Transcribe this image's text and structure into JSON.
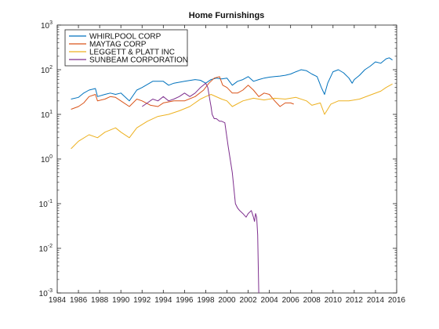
{
  "chart_data": {
    "type": "line",
    "title": "Home Furnishings",
    "xlabel": "",
    "ylabel": "",
    "x_scale": "linear",
    "y_scale": "log",
    "xlim": [
      1984,
      2016
    ],
    "ylim": [
      0.001,
      1000
    ],
    "x_ticks": [
      1984,
      1986,
      1988,
      1990,
      1992,
      1994,
      1996,
      1998,
      2000,
      2002,
      2004,
      2006,
      2008,
      2010,
      2012,
      2014,
      2016
    ],
    "y_ticks": [
      0.001,
      0.01,
      0.1,
      1,
      10,
      100,
      1000
    ],
    "y_tick_labels": [
      {
        "base": "10",
        "exp": "-3"
      },
      {
        "base": "10",
        "exp": "-2"
      },
      {
        "base": "10",
        "exp": "-1"
      },
      {
        "base": "10",
        "exp": "0"
      },
      {
        "base": "10",
        "exp": "1"
      },
      {
        "base": "10",
        "exp": "2"
      },
      {
        "base": "10",
        "exp": "3"
      }
    ],
    "grid": false,
    "legend_position": "top-left",
    "series": [
      {
        "name": "WHIRLPOOL CORP",
        "color": "#0072BD",
        "x": [
          1985.3,
          1986.0,
          1986.5,
          1987.0,
          1987.6,
          1987.8,
          1988.5,
          1989.0,
          1989.5,
          1990.0,
          1990.8,
          1991.5,
          1992.0,
          1993.0,
          1994.0,
          1994.5,
          1995.0,
          1996.0,
          1997.0,
          1997.5,
          1998.0,
          1998.5,
          1999.0,
          1999.5,
          2000.0,
          2000.5,
          2001.0,
          2001.5,
          2002.0,
          2002.5,
          2003.0,
          2003.5,
          2004.0,
          2004.5,
          2005.0,
          2005.5,
          2006.0,
          2006.5,
          2007.0,
          2007.5,
          2008.0,
          2008.5,
          2008.9,
          2009.2,
          2009.5,
          2010.0,
          2010.5,
          2011.0,
          2011.5,
          2011.8,
          2012.0,
          2012.5,
          2013.0,
          2013.5,
          2014.0,
          2014.5,
          2015.0,
          2015.3,
          2015.6
        ],
        "values": [
          22,
          24,
          30,
          35,
          38,
          25,
          28,
          30,
          28,
          30,
          20,
          35,
          40,
          55,
          55,
          45,
          50,
          55,
          60,
          58,
          50,
          60,
          65,
          62,
          65,
          45,
          55,
          60,
          70,
          55,
          60,
          65,
          68,
          70,
          72,
          75,
          80,
          90,
          100,
          95,
          80,
          70,
          40,
          28,
          50,
          90,
          100,
          85,
          65,
          50,
          60,
          75,
          100,
          120,
          150,
          140,
          175,
          185,
          165
        ]
      },
      {
        "name": "MAYTAG CORP",
        "color": "#D95319",
        "x": [
          1985.3,
          1986.0,
          1986.5,
          1987.0,
          1987.6,
          1987.8,
          1988.5,
          1989.0,
          1989.5,
          1990.0,
          1990.8,
          1991.5,
          1992.0,
          1992.8,
          1993.5,
          1994.0,
          1995.0,
          1996.0,
          1997.0,
          1997.8,
          1998.3,
          1998.8,
          1999.3,
          1999.6,
          2000.0,
          2000.5,
          2001.0,
          2001.5,
          2002.0,
          2002.5,
          2003.0,
          2003.5,
          2004.0,
          2004.5,
          2005.0,
          2005.5,
          2006.0,
          2006.3
        ],
        "values": [
          13,
          15,
          18,
          25,
          28,
          20,
          22,
          25,
          24,
          20,
          15,
          22,
          20,
          16,
          15,
          18,
          20,
          20,
          25,
          35,
          50,
          65,
          70,
          45,
          40,
          30,
          30,
          35,
          45,
          35,
          25,
          30,
          28,
          20,
          15,
          18,
          18,
          17
        ]
      },
      {
        "name": "LEGGETT & PLATT INC",
        "color": "#EDB120",
        "x": [
          1985.3,
          1986.0,
          1987.0,
          1987.8,
          1988.5,
          1989.5,
          1990.0,
          1990.8,
          1991.5,
          1992.5,
          1993.5,
          1994.5,
          1995.5,
          1996.5,
          1997.5,
          1998.0,
          1998.5,
          1999.5,
          2000.0,
          2000.5,
          2001.5,
          2002.5,
          2003.5,
          2004.5,
          2005.5,
          2006.5,
          2007.5,
          2008.0,
          2008.8,
          2009.2,
          2009.8,
          2010.5,
          2011.5,
          2012.5,
          2013.5,
          2014.5,
          2015.0,
          2015.6
        ],
        "values": [
          1.7,
          2.5,
          3.5,
          3.0,
          4.0,
          5.0,
          4.0,
          3.0,
          5.0,
          7.0,
          9.0,
          10.0,
          12.0,
          15.0,
          22.0,
          25.0,
          28.0,
          22.0,
          20.0,
          15.0,
          20.0,
          23.0,
          21.0,
          23.0,
          22.0,
          24.0,
          20.0,
          16.0,
          18.0,
          10.0,
          17.0,
          20.0,
          20.0,
          22.0,
          27.0,
          33.0,
          40.0,
          48.0
        ]
      },
      {
        "name": "SUNBEAM CORPORATION",
        "color": "#7E2F8E",
        "x": [
          1992.0,
          1992.5,
          1993.0,
          1993.5,
          1994.0,
          1994.5,
          1995.0,
          1995.5,
          1996.0,
          1996.5,
          1997.0,
          1997.5,
          1998.0,
          1998.2,
          1998.4,
          1998.5,
          1998.6,
          1998.8,
          1999.0,
          1999.3,
          1999.5,
          1999.8,
          2000.0,
          2000.1,
          2000.3,
          2000.5,
          2000.8,
          2001.0,
          2001.2,
          2001.5,
          2001.8,
          2002.0,
          2002.3,
          2002.5,
          2002.6,
          2002.7,
          2002.8,
          2002.9,
          2003.0
        ],
        "values": [
          15,
          18,
          22,
          20,
          25,
          20,
          22,
          25,
          30,
          25,
          30,
          40,
          50,
          40,
          20,
          15,
          10,
          8,
          8,
          7,
          7,
          6.5,
          3,
          2,
          1,
          0.5,
          0.1,
          0.08,
          0.07,
          0.06,
          0.05,
          0.06,
          0.07,
          0.05,
          0.04,
          0.06,
          0.05,
          0.02,
          0.001
        ]
      }
    ]
  }
}
